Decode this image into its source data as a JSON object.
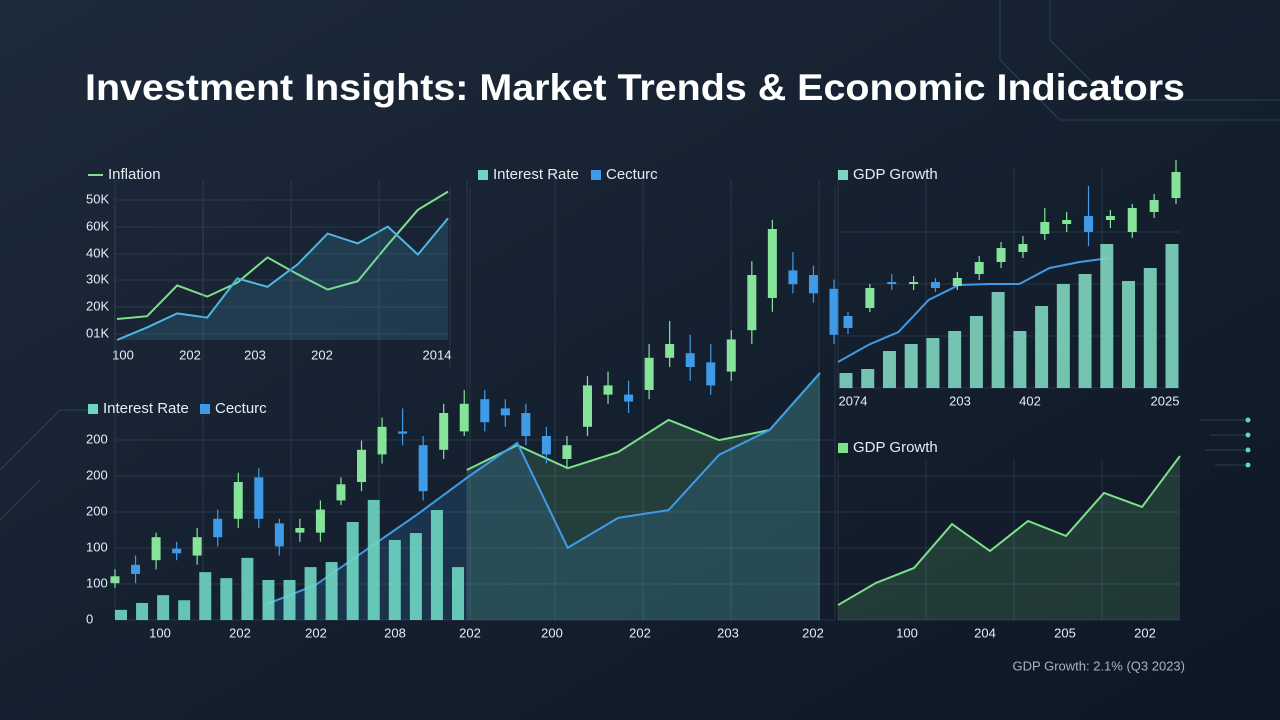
{
  "title": "Investment Insights: Market Trends & Economic Indicators",
  "footnote": "GDP Growth: 2.1% (Q3 2023)",
  "chart_data": [
    {
      "type": "line",
      "x_labels": [
        "100",
        "202",
        "203",
        "202",
        "2014"
      ],
      "y_labels": [
        "50K",
        "60K",
        "40K",
        "30K",
        "20K",
        "01K"
      ],
      "ylim": [
        0,
        110
      ],
      "series": [
        {
          "name": "Inflation",
          "color": "#7ee08a",
          "values": [
            15,
            17,
            39,
            31,
            41,
            59,
            47,
            36,
            42,
            68,
            93,
            106
          ]
        },
        {
          "color": "#4fb8e0",
          "values": [
            0,
            9,
            19,
            16,
            44,
            38,
            54,
            76,
            69,
            81,
            61,
            87
          ]
        }
      ]
    },
    {
      "type": "candlestick",
      "x_labels": [
        "100",
        "202",
        "202",
        "208",
        "202",
        "200",
        "202",
        "203",
        "202"
      ],
      "y_labels": [
        "200",
        "200",
        "200",
        "100",
        "100",
        "0"
      ],
      "ylim": [
        0,
        100
      ],
      "series": [
        {
          "name": "Interest Rate",
          "color": "#6fd6c4",
          "values": [
            2.2,
            3.7,
            5.4,
            4.3,
            10.4,
            9.1,
            13.5,
            8.7,
            8.7,
            11.5,
            12.6,
            21.3,
            26.1,
            17.4,
            18.9,
            23.9,
            11.5
          ]
        },
        {
          "name": "Cecturc",
          "color": "#3f9be8",
          "values": [
            3.3,
            7.6,
            15.2,
            22.8,
            30.9,
            38.5,
            15.7,
            22.2,
            23.9,
            35.9,
            41.3,
            53.7
          ]
        },
        {
          "color": "#7ee08a",
          "values": [
            null,
            null,
            null,
            null,
            32.6,
            38,
            33,
            36.5,
            43.5,
            39.1,
            41.3,
            53.7
          ]
        }
      ],
      "candles": {
        "up_color": "#86e39a",
        "down_color": "#3f9be8",
        "open": [
          8,
          12,
          13,
          15.5,
          14,
          22,
          22,
          31,
          21,
          19,
          19,
          26,
          30,
          36,
          41,
          38,
          37,
          41,
          48,
          46,
          45,
          40,
          35,
          42,
          49,
          49,
          50,
          57,
          58,
          56,
          54,
          63,
          70,
          76,
          75,
          72
        ],
        "close": [
          9.5,
          10,
          18,
          14.5,
          18,
          18,
          30,
          22,
          16,
          20,
          24,
          29.5,
          37,
          42,
          40.5,
          28,
          45,
          47,
          43,
          44.5,
          40,
          36,
          38,
          51,
          51,
          47.5,
          57,
          60,
          55,
          51,
          61,
          75,
          85,
          73,
          71,
          62
        ],
        "high": [
          11,
          14,
          19,
          17,
          20,
          24,
          32,
          33,
          22,
          22,
          26,
          31,
          39,
          44,
          46,
          40,
          47,
          50,
          50,
          48,
          47,
          42,
          40,
          53,
          54,
          52,
          60,
          65,
          62,
          60,
          63,
          78,
          87,
          80,
          77,
          74
        ],
        "low": [
          7,
          8,
          11,
          13,
          12,
          16,
          20,
          20,
          14,
          17,
          17,
          25,
          28,
          34,
          38,
          26,
          35,
          40,
          41,
          42,
          38,
          34,
          33,
          40,
          47,
          45,
          48,
          55,
          52,
          49,
          52,
          60,
          67,
          71,
          69,
          60
        ]
      }
    },
    {
      "type": "candlestick",
      "x_labels": [
        "2074",
        "203",
        "402",
        "2025"
      ],
      "ylim": [
        0,
        120
      ],
      "series": [
        {
          "name": "GDP Growth",
          "color": "#7ed6c0",
          "values": [
            7.5,
            9.5,
            18.5,
            22,
            25,
            28.5,
            36,
            48,
            28.5,
            41,
            52,
            57,
            72,
            53.5,
            60,
            72
          ]
        },
        {
          "color": "#3f9be8",
          "values": [
            13,
            21.5,
            28,
            44,
            51.5,
            52,
            52,
            60,
            63,
            65
          ]
        }
      ],
      "candles": {
        "up_color": "#86e39a",
        "down_color": "#3f9be8",
        "open": [
          36,
          40,
          53,
          52,
          53,
          51,
          57,
          63,
          68,
          77,
          82,
          86,
          84,
          78,
          88,
          95
        ],
        "close": [
          30,
          50,
          52,
          53,
          50,
          55,
          63,
          70,
          72,
          83,
          84,
          78,
          86,
          90,
          94,
          108
        ],
        "high": [
          38,
          52,
          57,
          56,
          55,
          58,
          66,
          73,
          76,
          90,
          88,
          101,
          89,
          92,
          97,
          114
        ],
        "low": [
          27,
          38,
          49,
          49,
          48,
          49,
          54,
          60,
          65,
          74,
          78,
          71,
          80,
          75,
          85,
          92
        ]
      }
    },
    {
      "type": "area",
      "x_labels": [
        "100",
        "204",
        "205",
        "202"
      ],
      "ylim": [
        0,
        100
      ],
      "series": [
        {
          "name": "GDP Growth",
          "color": "#7ee08a",
          "values": [
            8.3,
            20.6,
            28.9,
            53.3,
            38.3,
            55,
            46.7,
            70.6,
            62.8,
            91.1
          ]
        }
      ]
    }
  ]
}
